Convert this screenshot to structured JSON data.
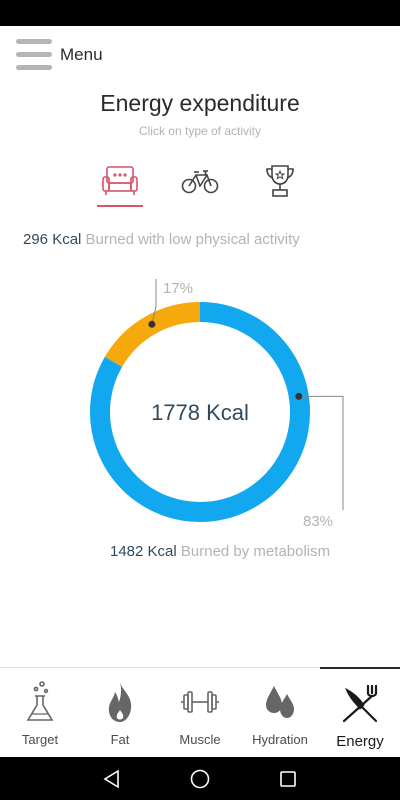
{
  "header": {
    "menu_label": "Menu",
    "title": "Energy expenditure",
    "subtitle": "Click on type of activity"
  },
  "activities": [
    {
      "name": "low-physical-activity",
      "icon": "armchair-icon",
      "selected": true
    },
    {
      "name": "medium-physical-activity",
      "icon": "bicycle-icon",
      "selected": false
    },
    {
      "name": "high-physical-activity",
      "icon": "trophy-icon",
      "selected": false
    }
  ],
  "summary": {
    "activity_kcal": "296 Kcal",
    "activity_desc": "Burned with low physical activity",
    "total_kcal": "1778 Kcal",
    "metabolism_kcal": "1482 Kcal",
    "metabolism_desc": "Burned by metabolism",
    "activity_pct_label": "17%",
    "metabolism_pct_label": "83%"
  },
  "chart_data": {
    "type": "pie",
    "categories": [
      "Low physical activity",
      "Metabolism"
    ],
    "values": [
      296,
      1482
    ],
    "percent": [
      17,
      83
    ],
    "colors": [
      "#f5a90c",
      "#11a8f0"
    ]
  },
  "tabs": [
    {
      "label": "Target",
      "icon": "flask-icon",
      "active": false
    },
    {
      "label": "Fat",
      "icon": "flame-icon",
      "active": false
    },
    {
      "label": "Muscle",
      "icon": "dumbbell-icon",
      "active": false
    },
    {
      "label": "Hydration",
      "icon": "water-drops-icon",
      "active": false
    },
    {
      "label": "Energy",
      "icon": "fork-knife-icon",
      "active": true
    }
  ],
  "colors": {
    "accent": "#d9536c",
    "activity_segment": "#f5a90c",
    "metabolism_segment": "#11a8f0",
    "kcal_text": "#2f4a5f",
    "muted_text": "#b3b3b3"
  }
}
